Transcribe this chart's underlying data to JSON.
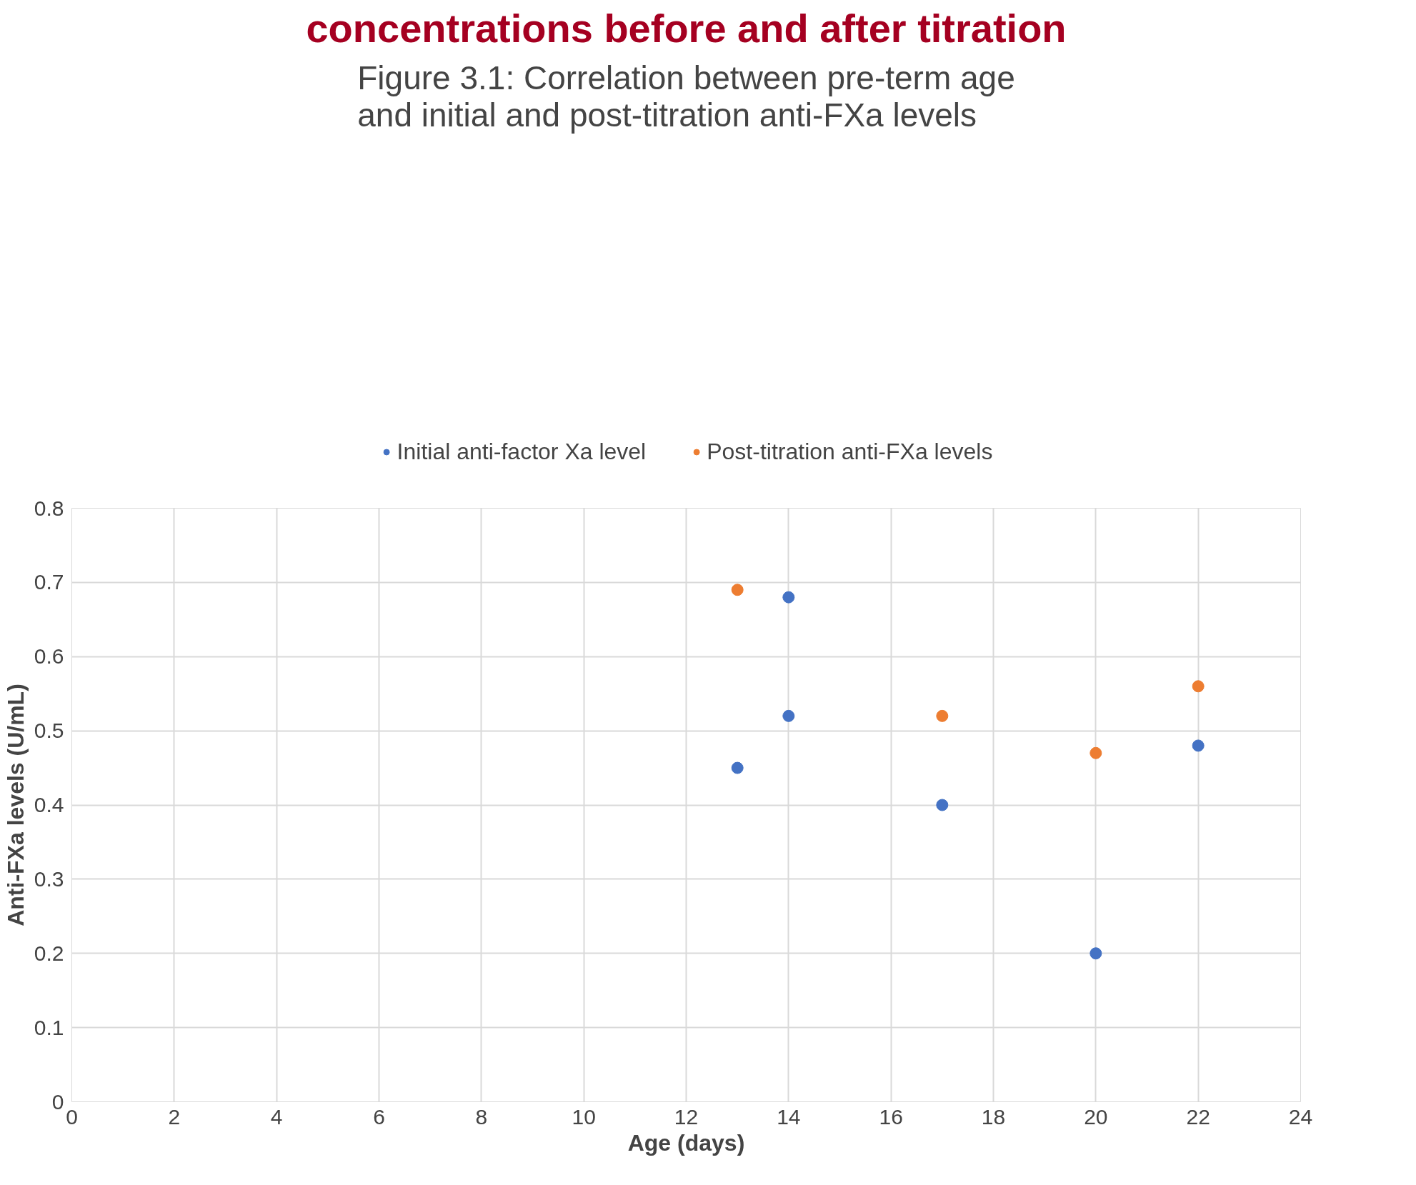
{
  "chart_data": {
    "type": "scatter",
    "title": "Figure 3.1: Correlation between pre-term age\nand initial and post-titration anti-FXa levels",
    "xlabel": "Age (days)",
    "ylabel": "Anti-FXa levels (U/mL)",
    "annotations": [
      "concentrations before and after titration"
    ],
    "series": [
      {
        "name": "Initial anti-factor Xa level",
        "color": "#4472c4",
        "x": [
          13,
          14,
          14,
          17,
          20,
          22
        ],
        "values": [
          0.45,
          0.68,
          0.52,
          0.4,
          0.2,
          0.48
        ]
      },
      {
        "name": "Post-titration anti-FXa levels",
        "color": "#ed7d31",
        "x": [
          13,
          17,
          20,
          22
        ],
        "values": [
          0.69,
          0.52,
          0.47,
          0.56
        ]
      }
    ],
    "xlim": [
      0,
      24
    ],
    "xticks": [
      0,
      2,
      4,
      6,
      8,
      10,
      12,
      14,
      16,
      18,
      20,
      22,
      24
    ],
    "ylim": [
      0,
      0.8
    ],
    "yticks": [
      0,
      0.1,
      0.2,
      0.3,
      0.4,
      0.5,
      0.6,
      0.7,
      0.8
    ],
    "grid": true,
    "legend": "top",
    "marker": "circle"
  }
}
